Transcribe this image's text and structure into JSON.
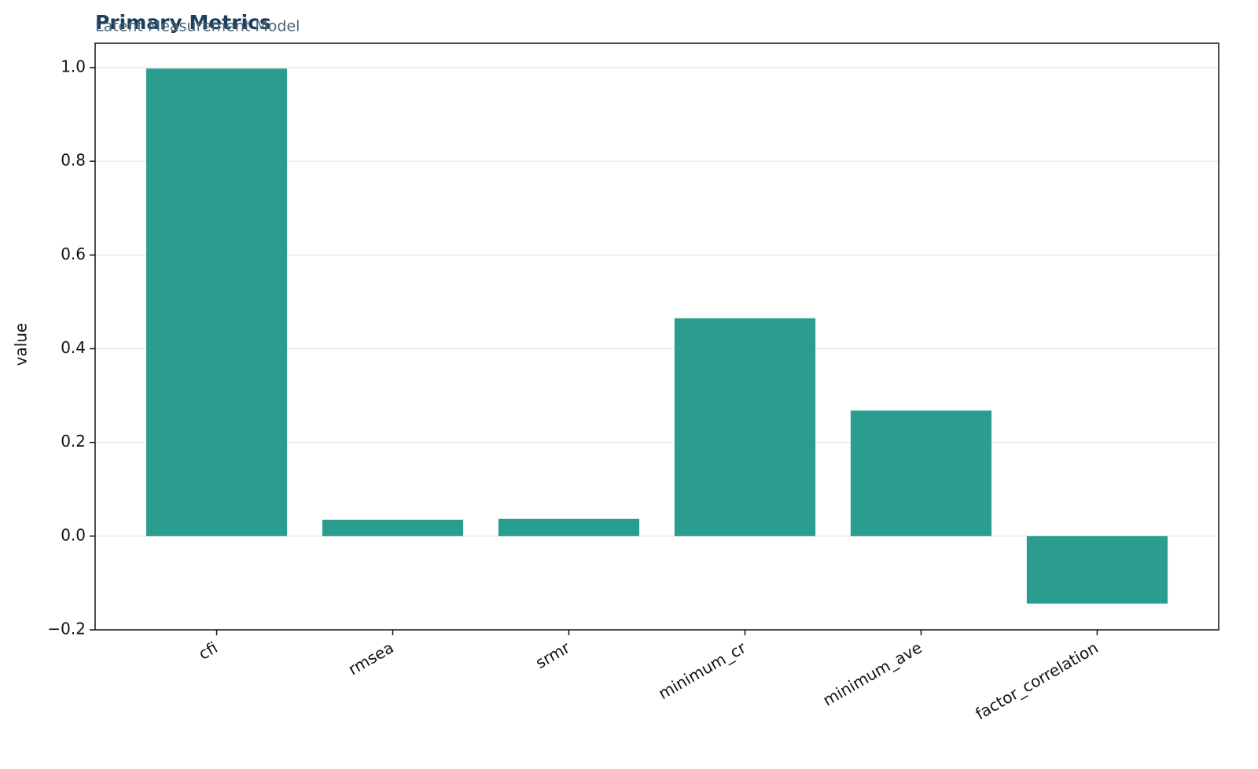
{
  "chart_data": {
    "type": "bar",
    "title": "Primary Metrics",
    "subtitle": "Latent Measurement Model",
    "y_label": "value",
    "categories": [
      "cfi",
      "rmsea",
      "srmr",
      "minimum_cr",
      "minimum_ave",
      "factor_correlation"
    ],
    "values": [
      0.998,
      0.035,
      0.037,
      0.465,
      0.268,
      -0.144
    ],
    "color": "#2a9d8f",
    "ylim": [
      -0.2,
      1.052
    ],
    "yticks": [
      {
        "value": -0.2,
        "label": "−0.2"
      },
      {
        "value": 0,
        "label": "0.0"
      },
      0.2,
      0.4,
      0.6,
      0.8,
      {
        "value": 1,
        "label": "1.0"
      }
    ],
    "grid": true
  }
}
